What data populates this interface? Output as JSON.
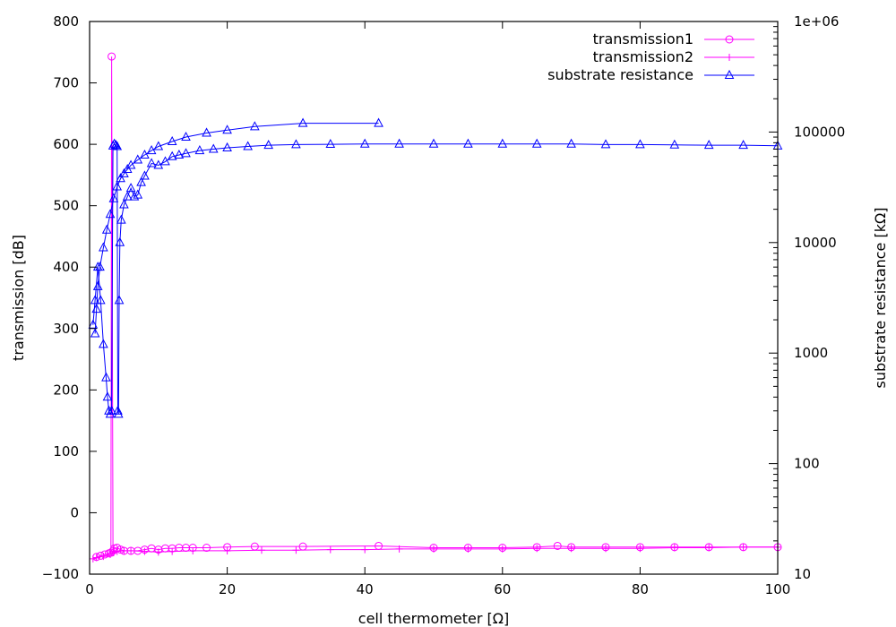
{
  "chart_data": {
    "type": "line",
    "xlabel": "cell thermometer [Ω]",
    "ylabel": "transmission [dB]",
    "y2label": "substrate resistance [kΩ]",
    "xlim": [
      0,
      100
    ],
    "ylim": [
      -100,
      800
    ],
    "y2lim": [
      10,
      1000000
    ],
    "y2scale": "log",
    "grid": false,
    "legend_position": "top-right",
    "x_ticks": [
      "0",
      "20",
      "40",
      "60",
      "80",
      "100"
    ],
    "y_ticks": [
      "−100",
      "0",
      "100",
      "200",
      "300",
      "400",
      "500",
      "600",
      "700",
      "800"
    ],
    "y2_ticks": [
      "10",
      "100",
      "1000",
      "10000",
      "100000",
      "1e+06"
    ],
    "series": [
      {
        "name": "transmission1",
        "color": "#ff00ff",
        "marker": "circle",
        "axis": "left",
        "x": [
          1.0,
          1.6,
          2.2,
          2.8,
          3.1,
          3.2,
          3.4,
          3.6,
          4.0,
          4.5,
          5.0,
          6.0,
          7.0,
          8.0,
          9.0,
          10.0,
          11.0,
          12.0,
          13.0,
          14.0,
          15.0,
          17.0,
          20.0,
          24.0,
          31.0,
          42.0,
          50,
          55,
          60,
          65,
          68,
          70,
          75,
          80,
          85,
          90,
          95,
          100
        ],
        "y": [
          -72,
          -70,
          -68,
          -66,
          -65,
          743,
          -62,
          -58,
          -57,
          -60,
          -62,
          -62,
          -62,
          -60,
          -58,
          -60,
          -58,
          -58,
          -57,
          -57,
          -57,
          -57,
          -56,
          -55,
          -55,
          -54,
          -57,
          -57,
          -57,
          -56,
          -54,
          -56,
          -56,
          -56,
          -56,
          -56,
          -56,
          -56
        ]
      },
      {
        "name": "transmission2",
        "color": "#ff00ff",
        "marker": "plus",
        "axis": "left",
        "x": [
          0.5,
          1,
          2,
          3,
          3.5,
          4,
          5,
          6,
          8,
          10,
          12,
          15,
          20,
          25,
          30,
          35,
          40,
          45,
          50,
          55,
          60,
          65,
          70,
          75,
          80,
          85,
          90,
          95,
          100
        ],
        "y": [
          -75,
          -73,
          -71,
          -68,
          -65,
          -63,
          -62,
          -62,
          -63,
          -64,
          -63,
          -62,
          -62,
          -61,
          -61,
          -60,
          -60,
          -59,
          -59,
          -59,
          -59,
          -58,
          -58,
          -58,
          -58,
          -57,
          -57,
          -56,
          -56
        ]
      },
      {
        "name": "substrate resistance",
        "color": "#0000ff",
        "marker": "triangle",
        "axis": "right",
        "x": [
          0.8,
          1.0,
          1.2,
          1.5,
          2.0,
          2.5,
          3.0,
          3.5,
          4.0,
          4.5,
          5.0,
          5.5,
          6.0,
          7.0,
          8.0,
          9.0,
          10.0,
          12.0,
          14.0,
          17.0,
          20.0,
          24.0,
          31.0,
          42.0
        ],
        "y": [
          1500,
          2500,
          4000,
          6000,
          9000,
          13000,
          18000,
          25000,
          32000,
          38000,
          42000,
          46000,
          50000,
          56000,
          62000,
          68000,
          74000,
          82000,
          90000,
          98000,
          104000,
          112000,
          120000,
          120000
        ]
      },
      {
        "name": "",
        "color": "#0000ff",
        "marker": "triangle",
        "axis": "right",
        "x": [
          0.5,
          0.8,
          1.2,
          1.6,
          2.0,
          2.4,
          2.6,
          2.8,
          3.0,
          3.2,
          3.4,
          3.6,
          3.8,
          4.0,
          4.1,
          4.2,
          4.3,
          4.4,
          4.6,
          5.0,
          5.5,
          6.0,
          6.5,
          7.0,
          7.5,
          8.0,
          9.0,
          10.0,
          11.0,
          12.0,
          13.0,
          14.0,
          16.0,
          18.0,
          20.0,
          23.0,
          26.0,
          30.0,
          35.0,
          40.0,
          45.0,
          50.0,
          55.0,
          60.0,
          65.0,
          70.0,
          75.0,
          80.0,
          85.0,
          90.0,
          95.0,
          100.0
        ],
        "y": [
          1800,
          3000,
          6000,
          3000,
          1200,
          600,
          400,
          300,
          280,
          300,
          75000,
          78000,
          76000,
          74000,
          300,
          280,
          3000,
          10000,
          16000,
          22000,
          26000,
          31000,
          26000,
          27000,
          35000,
          40000,
          52000,
          50000,
          54000,
          60000,
          62000,
          64000,
          68000,
          70000,
          72000,
          74000,
          76000,
          77000,
          77500,
          78000,
          78000,
          78000,
          78000,
          78000,
          78000,
          78000,
          77000,
          77000,
          76500,
          76000,
          76000,
          75000
        ]
      }
    ]
  }
}
